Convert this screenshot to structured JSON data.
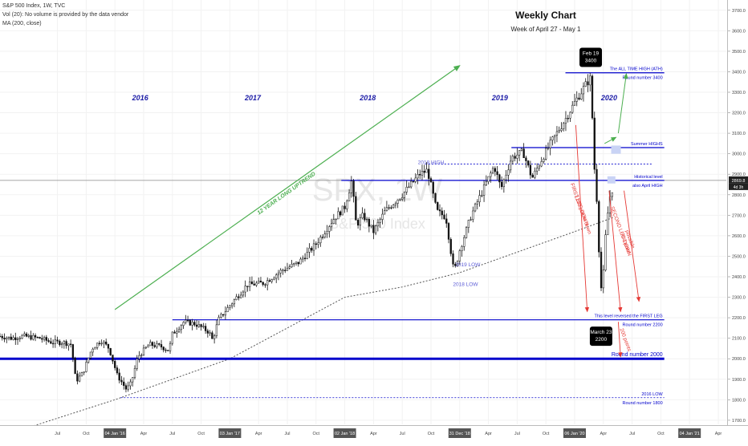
{
  "legend": {
    "symbol_line": "S&P 500 Index, 1W, TVC",
    "vol_line": "Vol (20): No volume is provided by the data vendor",
    "ma_line": "MA (200, close)"
  },
  "title": {
    "main": "Weekly Chart",
    "sub": "Week of April 27 - May 1"
  },
  "watermark": "SPX, 1W",
  "watermark_sub": "S&P 500 Index",
  "price_label": "2869.8",
  "countdown_label": "4d 3h",
  "colors": {
    "candle": "#111111",
    "level_line": "#0000cc",
    "trend_arrow": "#4caf50",
    "ma_line": "#555555",
    "red_arrow": "#e53935",
    "year_label": "#1a1aa6",
    "trend_label": "#4caf50",
    "callout_bg": "#000000"
  },
  "chart_data": {
    "type": "candlestick",
    "timeframe": "1W",
    "ylim": [
      1680,
      3750
    ],
    "y_ticks": [
      1700,
      1800,
      1900,
      2000,
      2100,
      2200,
      2300,
      2400,
      2500,
      2600,
      2700,
      2800,
      2900,
      3000,
      3100,
      3200,
      3300,
      3400,
      3500,
      3600,
      3700
    ],
    "y_tick_labels": [
      "1700.0",
      "1800.0",
      "1900.0",
      "2000.0",
      "2100.0",
      "2200.0",
      "2300.0",
      "2400.0",
      "2500.0",
      "2600.0",
      "2700.0",
      "2800.0",
      "2900.0",
      "3000.0",
      "3100.0",
      "3200.0",
      "3300.0",
      "3400.0",
      "3500.0",
      "3600.0",
      "3700.0"
    ],
    "x_ticks": [
      {
        "t": 2015.5,
        "label": "Jul",
        "boxed": false
      },
      {
        "t": 2015.75,
        "label": "Oct",
        "boxed": false
      },
      {
        "t": 2016.0,
        "label": "04 Jan '16",
        "boxed": true
      },
      {
        "t": 2016.25,
        "label": "Apr",
        "boxed": false
      },
      {
        "t": 2016.5,
        "label": "Jul",
        "boxed": false
      },
      {
        "t": 2016.75,
        "label": "Oct",
        "boxed": false
      },
      {
        "t": 2017.0,
        "label": "03 Jan '17",
        "boxed": true
      },
      {
        "t": 2017.25,
        "label": "Apr",
        "boxed": false
      },
      {
        "t": 2017.5,
        "label": "Jul",
        "boxed": false
      },
      {
        "t": 2017.75,
        "label": "Oct",
        "boxed": false
      },
      {
        "t": 2018.0,
        "label": "02 Jan '18",
        "boxed": true
      },
      {
        "t": 2018.25,
        "label": "Apr",
        "boxed": false
      },
      {
        "t": 2018.5,
        "label": "Jul",
        "boxed": false
      },
      {
        "t": 2018.75,
        "label": "Oct",
        "boxed": false
      },
      {
        "t": 2019.0,
        "label": "31 Dec '18",
        "boxed": true
      },
      {
        "t": 2019.25,
        "label": "Apr",
        "boxed": false
      },
      {
        "t": 2019.5,
        "label": "Jul",
        "boxed": false
      },
      {
        "t": 2019.75,
        "label": "Oct",
        "boxed": false
      },
      {
        "t": 2020.0,
        "label": "06 Jan '20",
        "boxed": true
      },
      {
        "t": 2020.25,
        "label": "Apr",
        "boxed": false
      },
      {
        "t": 2020.5,
        "label": "Jul",
        "boxed": false
      },
      {
        "t": 2020.75,
        "label": "Oct",
        "boxed": false
      },
      {
        "t": 2021.0,
        "label": "04 Jan '21",
        "boxed": true
      },
      {
        "t": 2021.25,
        "label": "Apr",
        "boxed": false
      }
    ],
    "price_anchors": [
      [
        2015.0,
        2110
      ],
      [
        2015.1,
        2100
      ],
      [
        2015.2,
        2110
      ],
      [
        2015.35,
        2100
      ],
      [
        2015.45,
        2080
      ],
      [
        2015.55,
        2080
      ],
      [
        2015.62,
        2070
      ],
      [
        2015.66,
        1890
      ],
      [
        2015.72,
        1930
      ],
      [
        2015.8,
        2050
      ],
      [
        2015.88,
        2090
      ],
      [
        2015.95,
        2050
      ],
      [
        2016.02,
        1920
      ],
      [
        2016.1,
        1850
      ],
      [
        2016.14,
        1880
      ],
      [
        2016.2,
        2010
      ],
      [
        2016.3,
        2070
      ],
      [
        2016.4,
        2060
      ],
      [
        2016.47,
        2040
      ],
      [
        2016.5,
        2120
      ],
      [
        2016.6,
        2180
      ],
      [
        2016.7,
        2170
      ],
      [
        2016.82,
        2130
      ],
      [
        2016.85,
        2090
      ],
      [
        2016.9,
        2190
      ],
      [
        2017.0,
        2260
      ],
      [
        2017.15,
        2360
      ],
      [
        2017.3,
        2370
      ],
      [
        2017.45,
        2430
      ],
      [
        2017.6,
        2470
      ],
      [
        2017.75,
        2560
      ],
      [
        2017.9,
        2680
      ],
      [
        2018.0,
        2740
      ],
      [
        2018.06,
        2870
      ],
      [
        2018.1,
        2650
      ],
      [
        2018.16,
        2700
      ],
      [
        2018.25,
        2620
      ],
      [
        2018.35,
        2720
      ],
      [
        2018.5,
        2800
      ],
      [
        2018.65,
        2900
      ],
      [
        2018.72,
        2920
      ],
      [
        2018.8,
        2720
      ],
      [
        2018.88,
        2690
      ],
      [
        2018.95,
        2420
      ],
      [
        2019.0,
        2530
      ],
      [
        2019.1,
        2700
      ],
      [
        2019.2,
        2820
      ],
      [
        2019.3,
        2940
      ],
      [
        2019.36,
        2830
      ],
      [
        2019.45,
        2980
      ],
      [
        2019.55,
        3010
      ],
      [
        2019.63,
        2880
      ],
      [
        2019.72,
        2980
      ],
      [
        2019.8,
        3060
      ],
      [
        2019.9,
        3150
      ],
      [
        2020.0,
        3250
      ],
      [
        2020.1,
        3340
      ],
      [
        2020.14,
        3370
      ],
      [
        2020.17,
        2950
      ],
      [
        2020.2,
        2720
      ],
      [
        2020.22,
        2400
      ],
      [
        2020.24,
        2300
      ],
      [
        2020.26,
        2540
      ],
      [
        2020.3,
        2780
      ],
      [
        2020.33,
        2830
      ],
      [
        2020.34,
        2870
      ]
    ],
    "moving_average": {
      "name": "MA (200, close)",
      "points": [
        [
          2015.0,
          1620
        ],
        [
          2016.0,
          1800
        ],
        [
          2016.5,
          1900
        ],
        [
          2017.0,
          2000
        ],
        [
          2017.5,
          2150
        ],
        [
          2018.0,
          2300
        ],
        [
          2018.5,
          2350
        ],
        [
          2019.0,
          2420
        ],
        [
          2019.5,
          2520
        ],
        [
          2020.0,
          2620
        ],
        [
          2020.34,
          2690
        ]
      ]
    },
    "horizontal_levels": [
      {
        "y": 3395,
        "t0": 2019.92,
        "t1": 2020.78,
        "style": "solid",
        "label": "The ALL TIME HIGH  (ATH)",
        "label_below": "Round number 3400"
      },
      {
        "y": 3030,
        "t0": 2019.45,
        "t1": 2020.78,
        "style": "solid",
        "label": "Summer HIGHS",
        "label_below": ""
      },
      {
        "y": 2950,
        "t0": 2018.7,
        "t1": 2020.68,
        "style": "dotted",
        "label": "",
        "label_below": ""
      },
      {
        "y": 2870,
        "t0": 2017.97,
        "t1": 2020.78,
        "style": "solid",
        "label": "Historical level",
        "label_below": "also April HIGH"
      },
      {
        "y": 2190,
        "t0": 2016.5,
        "t1": 2020.78,
        "style": "solid",
        "label": "This level reversed the FIRST LEG",
        "label_below": "Round number 2200"
      },
      {
        "y": 2000,
        "t0": 2015.0,
        "t1": 2020.78,
        "style": "thick",
        "label": "Round number 2000",
        "label_below": ""
      },
      {
        "y": 1810,
        "t0": 2016.05,
        "t1": 2020.78,
        "style": "dotted",
        "label": "2016 LOW",
        "label_below": "Round number 1800"
      }
    ],
    "level_tags": [
      {
        "t": 2018.75,
        "y": 2950,
        "text": "2018 HIGH"
      },
      {
        "t": 2019.07,
        "y": 2450,
        "text": "2019 LOW"
      },
      {
        "t": 2019.05,
        "y": 2355,
        "text": "2018 LOW"
      }
    ],
    "year_labels": [
      {
        "t": 2016.22,
        "y": 3260,
        "text": "2016"
      },
      {
        "t": 2017.2,
        "y": 3260,
        "text": "2017"
      },
      {
        "t": 2018.2,
        "y": 3260,
        "text": "2018"
      },
      {
        "t": 2019.35,
        "y": 3260,
        "text": "2019"
      },
      {
        "t": 2020.3,
        "y": 3260,
        "text": "2020"
      }
    ],
    "trend_label": "12 YEAR LONG UPTREND",
    "callouts": [
      {
        "t": 2020.14,
        "y": 3470,
        "lines": [
          "Feb 19",
          "3400"
        ]
      },
      {
        "t": 2020.23,
        "y": 2110,
        "lines": [
          "March 23",
          "2200"
        ]
      }
    ],
    "annotations": [
      {
        "text": "FIRST LEG DOWN",
        "t": 2020.03,
        "y": 2750
      },
      {
        "text": "1200 points down",
        "t": 2020.06,
        "y": 2700
      },
      {
        "text": "SECOND LEG DOWN",
        "t": 2020.39,
        "y": 2620
      },
      {
        "text": "possible",
        "t": 2020.47,
        "y": 2580
      },
      {
        "text": "700 point",
        "t": 2020.43,
        "y": 2560
      },
      {
        "text": "200 points",
        "t": 2020.43,
        "y": 2090
      }
    ]
  }
}
